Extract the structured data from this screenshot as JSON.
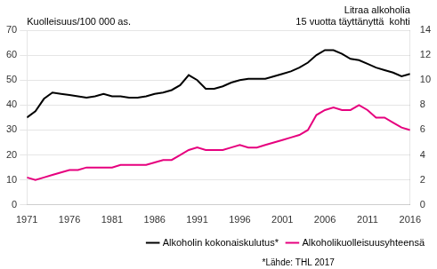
{
  "chart_data": {
    "type": "line",
    "x": [
      1971,
      1972,
      1973,
      1974,
      1975,
      1976,
      1977,
      1978,
      1979,
      1980,
      1981,
      1982,
      1983,
      1984,
      1985,
      1986,
      1987,
      1988,
      1989,
      1990,
      1991,
      1992,
      1993,
      1994,
      1995,
      1996,
      1997,
      1998,
      1999,
      2000,
      2001,
      2002,
      2003,
      2004,
      2005,
      2006,
      2007,
      2008,
      2009,
      2010,
      2011,
      2012,
      2013,
      2014,
      2015,
      2016
    ],
    "xlim": [
      1971,
      2016
    ],
    "xticks": [
      1971,
      1976,
      1981,
      1986,
      1991,
      1996,
      2001,
      2006,
      2011,
      2016
    ],
    "ylabel": "Kuolleisuus/100 000 as.",
    "y2label": [
      "Litraa alkoholia",
      "15 vuotta täyttänyttä  kohti"
    ],
    "annotations": [
      "*Lähde: THL 2017"
    ],
    "series": [
      {
        "name": "Alkoholin kokonaiskulutus*",
        "color": "#000000",
        "axis": "y2",
        "values": [
          7.0,
          7.5,
          8.5,
          9.0,
          8.9,
          8.8,
          8.7,
          8.6,
          8.7,
          8.9,
          8.7,
          8.7,
          8.6,
          8.6,
          8.7,
          8.9,
          9.0,
          9.2,
          9.6,
          10.4,
          10.0,
          9.3,
          9.3,
          9.5,
          9.8,
          10.0,
          10.1,
          10.1,
          10.1,
          10.3,
          10.5,
          10.7,
          11.0,
          11.4,
          12.0,
          12.4,
          12.4,
          12.1,
          11.7,
          11.6,
          11.3,
          11.0,
          10.8,
          10.6,
          10.3,
          10.5
        ]
      },
      {
        "name": "Alkoholikuolleisuusyhteensä",
        "color": "#e6007e",
        "values": [
          11,
          10,
          11,
          12,
          13,
          14,
          14,
          15,
          15,
          15,
          15,
          16,
          16,
          16,
          16,
          17,
          18,
          18,
          20,
          22,
          23,
          22,
          22,
          22,
          23,
          24,
          23,
          23,
          24,
          25,
          26,
          27,
          28,
          30,
          36,
          38,
          39,
          38,
          38,
          40,
          38,
          35,
          35,
          33,
          31,
          30
        ]
      }
    ],
    "ylim": [
      0,
      70
    ],
    "yticks": [
      0,
      10,
      20,
      30,
      40,
      50,
      60,
      70
    ],
    "y2lim": [
      0,
      14
    ],
    "y2ticks": [
      0,
      2,
      4,
      6,
      8,
      10,
      12,
      14
    ],
    "grid": true,
    "legend": "lower right"
  }
}
